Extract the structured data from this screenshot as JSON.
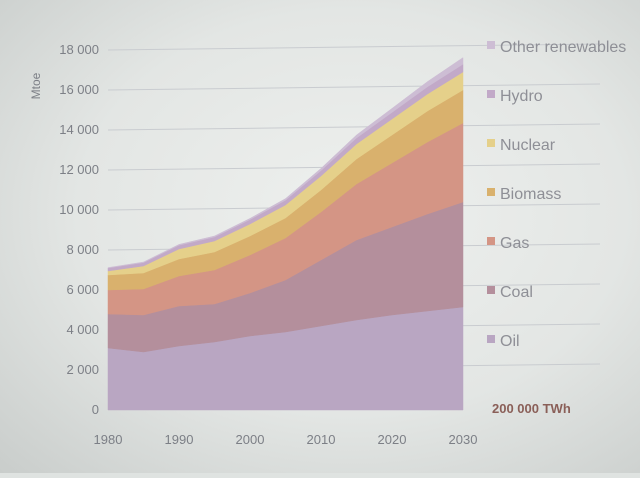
{
  "chart_data": {
    "type": "area",
    "stacked": true,
    "title": "",
    "ylabel": "Mtoe",
    "xlabel": "",
    "ylim": [
      0,
      18000
    ],
    "xlim": [
      1980,
      2030
    ],
    "yticks": [
      0,
      2000,
      4000,
      6000,
      8000,
      10000,
      12000,
      14000,
      16000,
      18000
    ],
    "ytick_labels": [
      "0",
      "2 000",
      "4 000",
      "6 000",
      "8 000",
      "10 000",
      "12 000",
      "14 000",
      "16 000",
      "18 000"
    ],
    "xticks": [
      "1980",
      "1990",
      "2000",
      "2010",
      "2020",
      "2030"
    ],
    "grid": true,
    "legend_position": "right",
    "x": [
      1980,
      1985,
      1990,
      1995,
      2000,
      2005,
      2010,
      2015,
      2020,
      2025,
      2030
    ],
    "series": [
      {
        "name": "Oil",
        "color": "#b9a6c2",
        "values": [
          3100,
          2900,
          3200,
          3400,
          3700,
          3900,
          4200,
          4500,
          4750,
          4950,
          5150
        ]
      },
      {
        "name": "Coal",
        "color": "#b48f9c",
        "values": [
          1700,
          1850,
          2000,
          1900,
          2150,
          2600,
          3300,
          4000,
          4400,
          4850,
          5250
        ]
      },
      {
        "name": "Gas",
        "color": "#d49585",
        "values": [
          1200,
          1300,
          1500,
          1700,
          1900,
          2100,
          2400,
          2800,
          3200,
          3600,
          3950
        ]
      },
      {
        "name": "Biomass",
        "color": "#d9b16d",
        "values": [
          750,
          800,
          850,
          900,
          950,
          1000,
          1100,
          1250,
          1400,
          1550,
          1650
        ]
      },
      {
        "name": "Nuclear",
        "color": "#e5d08a",
        "values": [
          200,
          350,
          500,
          550,
          600,
          650,
          700,
          750,
          800,
          850,
          900
        ]
      },
      {
        "name": "Hydro",
        "color": "#c2a9c8",
        "values": [
          150,
          170,
          190,
          200,
          220,
          240,
          270,
          300,
          330,
          360,
          390
        ]
      },
      {
        "name": "Other renewables",
        "color": "#cdbdd4",
        "values": [
          20,
          30,
          40,
          50,
          60,
          80,
          110,
          150,
          200,
          260,
          330
        ]
      }
    ],
    "legend_order": [
      "Other renewables",
      "Hydro",
      "Nuclear",
      "Biomass",
      "Gas",
      "Coal",
      "Oil"
    ],
    "annotation": "200 000 TWh"
  }
}
